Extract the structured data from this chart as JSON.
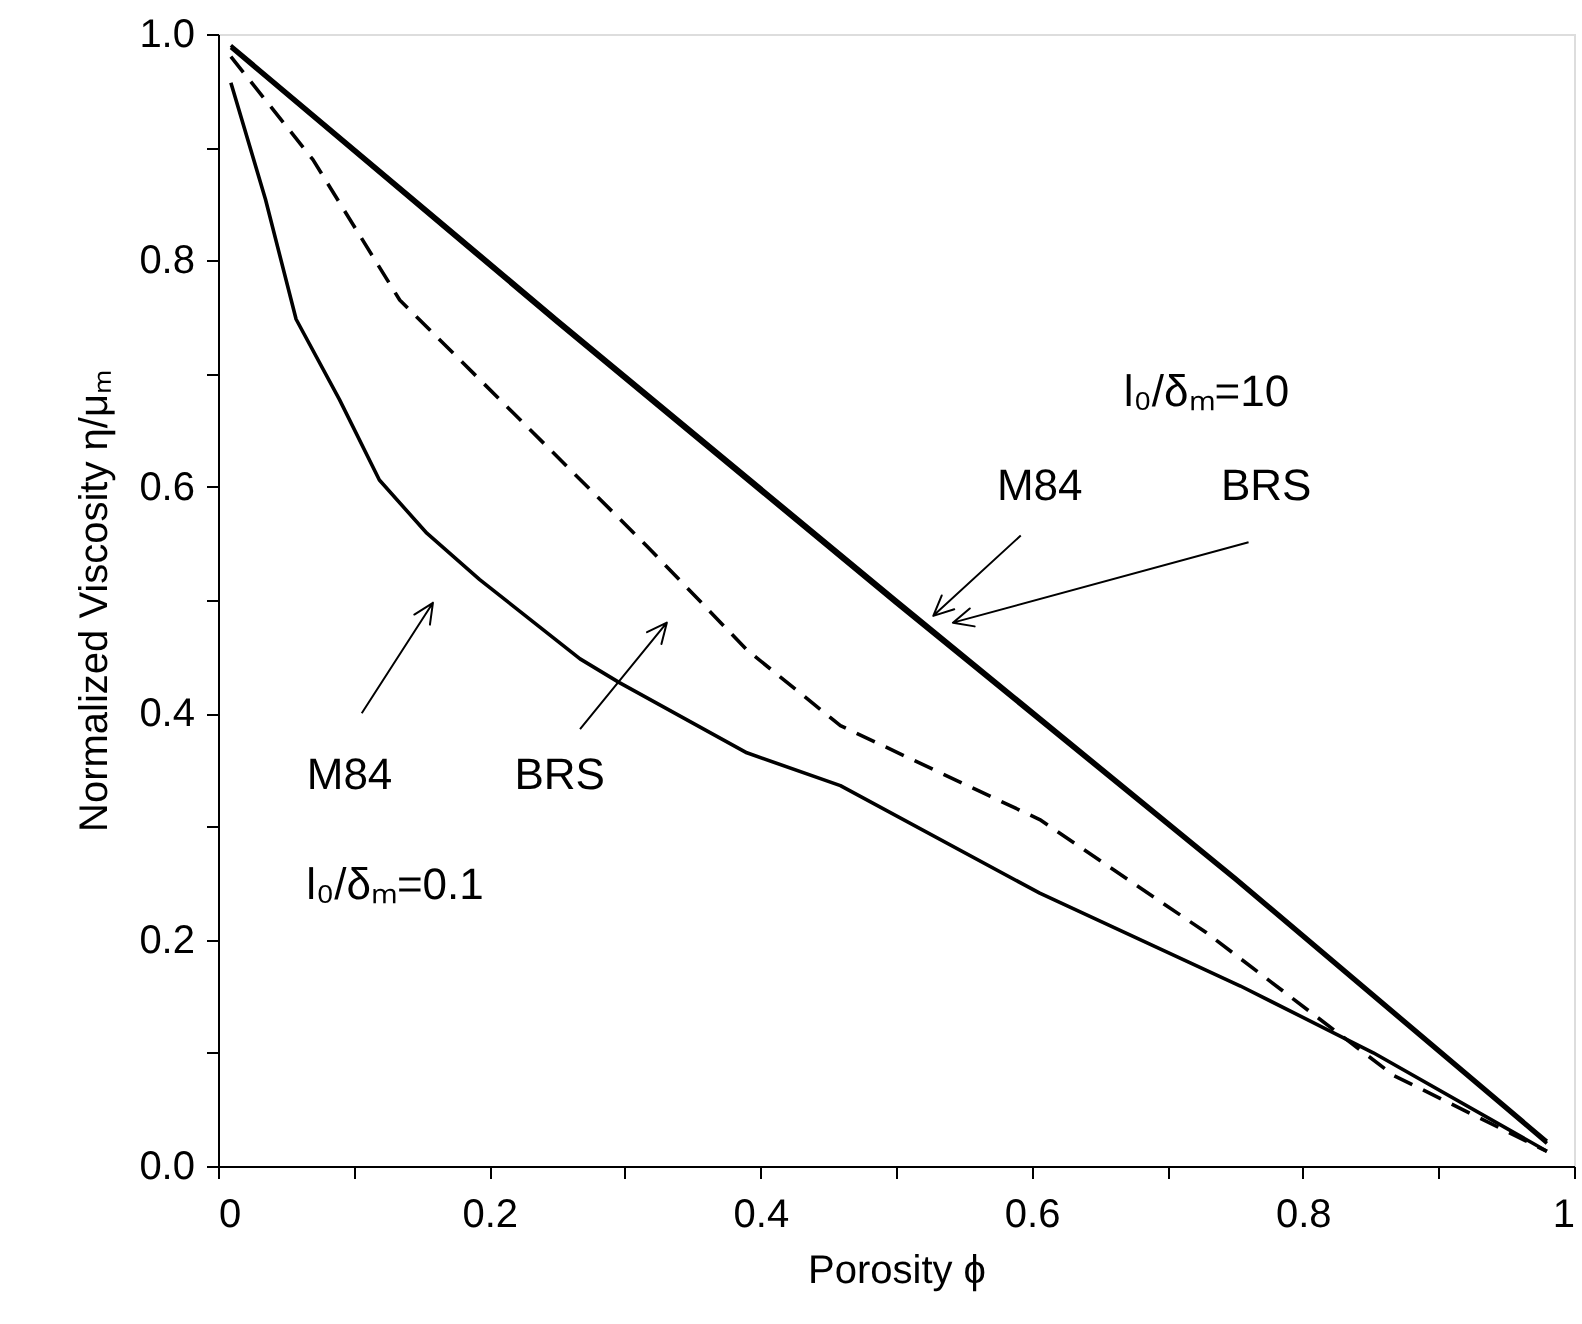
{
  "chart_data": {
    "type": "line",
    "xlabel": "Porosity  ϕ",
    "ylabel": "Normalized Viscosity  η/μₘ",
    "xlim": [
      0,
      1
    ],
    "ylim": [
      0,
      1
    ],
    "xticks": [
      0,
      {
        "value": 0.1,
        "label": null
      },
      0.2,
      {
        "value": 0.3,
        "label": null
      },
      0.4,
      {
        "value": 0.5,
        "label": null
      },
      0.6,
      {
        "value": 0.7,
        "label": null
      },
      0.8,
      {
        "value": 0.9,
        "label": null
      },
      1
    ],
    "yticks": [
      {
        "value": 0,
        "label": "0.0"
      },
      {
        "value": 0.1,
        "label": null
      },
      0.2,
      {
        "value": 0.3,
        "label": null
      },
      0.4,
      {
        "value": 0.5,
        "label": null
      },
      0.6,
      {
        "value": 0.7,
        "label": null
      },
      0.8,
      {
        "value": 0.9,
        "label": null
      },
      {
        "value": 1,
        "label": "1.0"
      }
    ],
    "grid": false,
    "marker": "none",
    "series": [
      {
        "color": "#000000",
        "line_style": "solid",
        "x": [
          0.0095,
          0.25,
          0.5,
          0.75,
          0.98
        ],
        "values": [
          0.988,
          0.745,
          0.497,
          0.253,
          0.02
        ]
      },
      {
        "color": "#000000",
        "line_style": "solid",
        "x": [
          0.0095,
          0.25,
          0.5,
          0.75,
          0.98
        ],
        "values": [
          0.99,
          0.748,
          0.5,
          0.255,
          0.022
        ]
      },
      {
        "color": "#000000",
        "line_style": "solid",
        "x": [
          0.0095,
          0.035,
          0.0576,
          0.0896,
          0.119,
          0.154,
          0.193,
          0.267,
          0.296,
          0.39,
          0.459,
          0.606,
          0.754,
          0.852,
          0.98
        ],
        "values": [
          0.957,
          0.854,
          0.748,
          0.677,
          0.606,
          0.559,
          0.518,
          0.448,
          0.427,
          0.365,
          0.336,
          0.241,
          0.159,
          0.1,
          0.013
        ]
      },
      {
        "color": "#000000",
        "line_style": "dashed",
        "x": [
          0.0095,
          0.07,
          0.134,
          0.218,
          0.316,
          0.39,
          0.459,
          0.606,
          0.729,
          0.867,
          0.98
        ],
        "values": [
          0.98,
          0.889,
          0.765,
          0.665,
          0.548,
          0.456,
          0.389,
          0.306,
          0.206,
          0.08,
          0.013
        ]
      }
    ],
    "annotations": [
      "M84",
      "BRS",
      "l₀/δₘ=0.1",
      "l₀/δₘ=10",
      "M84",
      "BRS"
    ]
  }
}
